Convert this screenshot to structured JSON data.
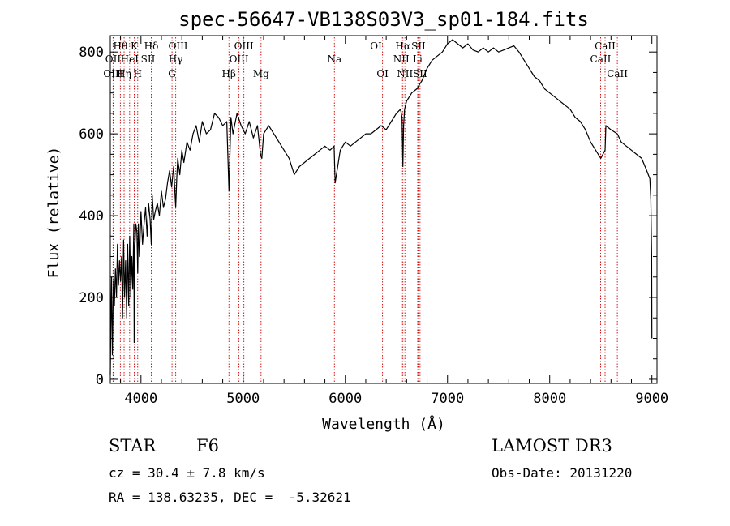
{
  "chart_data": {
    "type": "line",
    "title": "spec-56647-VB138S03V3_sp01-184.fits",
    "xlabel": "Wavelength (Å)",
    "ylabel": "Flux (relative)",
    "xlim": [
      3700,
      9050
    ],
    "ylim": [
      -10,
      840
    ],
    "xticks": [
      4000,
      5000,
      6000,
      7000,
      8000,
      9000
    ],
    "yticks": [
      0,
      200,
      400,
      600,
      800
    ],
    "grid": false,
    "series": [
      {
        "name": "flux",
        "x": [
          3700,
          3705,
          3712,
          3720,
          3730,
          3740,
          3750,
          3760,
          3770,
          3780,
          3790,
          3800,
          3810,
          3820,
          3830,
          3840,
          3850,
          3860,
          3870,
          3880,
          3890,
          3900,
          3910,
          3920,
          3930,
          3933,
          3940,
          3950,
          3960,
          3968,
          3975,
          3985,
          4000,
          4015,
          4030,
          4045,
          4060,
          4075,
          4090,
          4101,
          4110,
          4125,
          4140,
          4160,
          4180,
          4200,
          4220,
          4240,
          4260,
          4280,
          4300,
          4320,
          4340,
          4350,
          4360,
          4380,
          4400,
          4420,
          4450,
          4480,
          4510,
          4540,
          4570,
          4600,
          4640,
          4680,
          4720,
          4760,
          4800,
          4840,
          4861,
          4880,
          4900,
          4940,
          4980,
          5020,
          5060,
          5100,
          5140,
          5170,
          5183,
          5200,
          5250,
          5300,
          5350,
          5400,
          5450,
          5500,
          5550,
          5600,
          5650,
          5700,
          5750,
          5800,
          5850,
          5890,
          5900,
          5950,
          6000,
          6050,
          6100,
          6150,
          6200,
          6250,
          6300,
          6350,
          6400,
          6450,
          6500,
          6540,
          6555,
          6563,
          6570,
          6580,
          6600,
          6650,
          6700,
          6750,
          6800,
          6850,
          6900,
          6950,
          7000,
          7050,
          7100,
          7150,
          7200,
          7250,
          7300,
          7350,
          7400,
          7450,
          7500,
          7550,
          7600,
          7650,
          7700,
          7750,
          7800,
          7850,
          7900,
          7950,
          8000,
          8050,
          8100,
          8150,
          8200,
          8250,
          8300,
          8350,
          8400,
          8450,
          8500,
          8542,
          8550,
          8600,
          8662,
          8700,
          8750,
          8800,
          8850,
          8900,
          8950,
          8980,
          8990,
          8998,
          9000
        ],
        "values": [
          10,
          120,
          250,
          60,
          240,
          180,
          270,
          200,
          330,
          230,
          290,
          240,
          300,
          150,
          340,
          200,
          290,
          150,
          330,
          180,
          350,
          200,
          300,
          220,
          380,
          90,
          320,
          380,
          360,
          260,
          380,
          300,
          410,
          330,
          380,
          420,
          350,
          430,
          390,
          330,
          450,
          390,
          410,
          430,
          400,
          460,
          420,
          440,
          480,
          510,
          470,
          520,
          420,
          490,
          540,
          500,
          560,
          530,
          580,
          560,
          600,
          620,
          580,
          630,
          600,
          610,
          650,
          640,
          620,
          630,
          460,
          640,
          600,
          650,
          620,
          600,
          630,
          590,
          620,
          550,
          540,
          600,
          620,
          600,
          580,
          560,
          540,
          500,
          520,
          530,
          540,
          550,
          560,
          570,
          560,
          570,
          480,
          560,
          580,
          570,
          580,
          590,
          600,
          600,
          610,
          620,
          610,
          630,
          650,
          660,
          640,
          520,
          620,
          660,
          680,
          700,
          710,
          730,
          760,
          780,
          790,
          800,
          820,
          830,
          820,
          810,
          820,
          805,
          800,
          810,
          800,
          810,
          800,
          805,
          810,
          815,
          800,
          780,
          760,
          740,
          730,
          710,
          700,
          690,
          680,
          670,
          660,
          640,
          630,
          610,
          580,
          560,
          540,
          560,
          620,
          610,
          600,
          580,
          570,
          560,
          550,
          540,
          510,
          490,
          440,
          300,
          100
        ]
      }
    ],
    "lines": [
      {
        "label": "Hθ",
        "x": 3798,
        "row": 0
      },
      {
        "label": "OII",
        "x": 3727,
        "row": 1
      },
      {
        "label": "OIII",
        "x": 3727,
        "row": 2
      },
      {
        "label": "Hη",
        "x": 3835,
        "row": 2
      },
      {
        "label": "HeI",
        "x": 3889,
        "row": 1
      },
      {
        "label": "K",
        "x": 3934,
        "row": 0
      },
      {
        "label": "SII",
        "x": 4069,
        "row": 1
      },
      {
        "label": "H",
        "x": 3968,
        "row": 2
      },
      {
        "label": "Hδ",
        "x": 4101,
        "row": 0
      },
      {
        "label": "OIII",
        "x": 4363,
        "row": 0
      },
      {
        "label": "Hγ",
        "x": 4340,
        "row": 1
      },
      {
        "label": "G",
        "x": 4304,
        "row": 2
      },
      {
        "label": "Hβ",
        "x": 4861,
        "row": 2
      },
      {
        "label": "OIII",
        "x": 5007,
        "row": 0
      },
      {
        "label": "OIII",
        "x": 4959,
        "row": 1
      },
      {
        "label": "Mg",
        "x": 5175,
        "row": 2
      },
      {
        "label": "Na",
        "x": 5893,
        "row": 1
      },
      {
        "label": "OI",
        "x": 6300,
        "row": 0
      },
      {
        "label": "OI",
        "x": 6364,
        "row": 2
      },
      {
        "label": "Hα",
        "x": 6563,
        "row": 0
      },
      {
        "label": "NII",
        "x": 6548,
        "row": 1
      },
      {
        "label": "NII",
        "x": 6583,
        "row": 2
      },
      {
        "label": "SII",
        "x": 6716,
        "row": 0
      },
      {
        "label": "Li",
        "x": 6708,
        "row": 1
      },
      {
        "label": "SII",
        "x": 6731,
        "row": 2
      },
      {
        "label": "CaII",
        "x": 8542,
        "row": 0
      },
      {
        "label": "CaII",
        "x": 8498,
        "row": 1
      },
      {
        "label": "CaII",
        "x": 8662,
        "row": 2
      }
    ]
  },
  "info": {
    "class_label": "STAR",
    "subclass": "F6",
    "cz": "cz = 30.4 ± 7.8 km/s",
    "coords": "RA = 138.63235, DEC =  -5.32621",
    "survey": "LAMOST DR3",
    "obs_date": "Obs-Date: 20131220"
  },
  "colors": {
    "spectrum": "#000000",
    "line_marker": "#cc0000",
    "axes": "#000000"
  }
}
